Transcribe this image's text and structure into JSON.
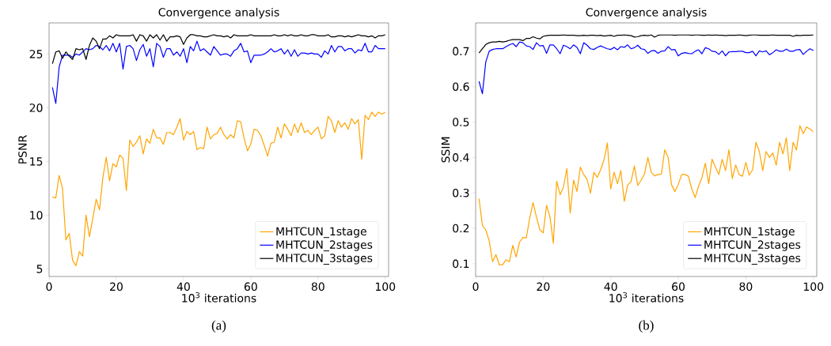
{
  "chart_data": [
    {
      "type": "line",
      "title": "Convergence analysis",
      "xlabel": "10$^{3}$ iterations",
      "ylabel": "PSNR",
      "legend": "bottom right",
      "annotations": [
        "(a)"
      ],
      "x": [
        1,
        2,
        3,
        4,
        5,
        6,
        7,
        8,
        9,
        10,
        11,
        12,
        13,
        14,
        15,
        16,
        17,
        18,
        19,
        20,
        21,
        22,
        23,
        24,
        25,
        26,
        27,
        28,
        29,
        30,
        31,
        32,
        33,
        34,
        35,
        36,
        37,
        38,
        39,
        40,
        41,
        42,
        43,
        44,
        45,
        46,
        47,
        48,
        49,
        50,
        51,
        52,
        53,
        54,
        55,
        56,
        57,
        58,
        59,
        60,
        61,
        62,
        63,
        64,
        65,
        66,
        67,
        68,
        69,
        70,
        71,
        72,
        73,
        74,
        75,
        76,
        77,
        78,
        79,
        80,
        81,
        82,
        83,
        84,
        85,
        86,
        87,
        88,
        89,
        90,
        91,
        92,
        93,
        94,
        95,
        96,
        97,
        98,
        99,
        100
      ],
      "xlim": [
        0,
        101
      ],
      "xticks": [
        0,
        20,
        40,
        60,
        80,
        100
      ],
      "ylim": [
        4.3,
        27.9
      ],
      "yticks": [
        5,
        10,
        15,
        20,
        25
      ],
      "series": [
        {
          "name": "MHTCUN_1stage",
          "color": "#ffa500",
          "values": [
            11.7,
            11.6,
            13.7,
            12.5,
            7.7,
            8.3,
            5.8,
            5.3,
            6.6,
            6.2,
            10.0,
            8.0,
            9.7,
            11.5,
            10.5,
            13.5,
            15.4,
            13.2,
            14.8,
            14.5,
            15.6,
            15.3,
            12.3,
            17.0,
            16.4,
            16.8,
            17.4,
            15.7,
            17.1,
            16.7,
            18.0,
            17.2,
            17.2,
            16.6,
            17.7,
            17.7,
            17.5,
            18.2,
            19.0,
            17.0,
            17.8,
            17.5,
            17.8,
            16.1,
            16.3,
            16.2,
            18.2,
            17.1,
            17.5,
            17.6,
            18.2,
            17.5,
            17.1,
            17.5,
            17.2,
            18.8,
            18.7,
            17.2,
            16.0,
            16.6,
            18.0,
            17.9,
            17.4,
            16.5,
            15.5,
            16.7,
            16.8,
            18.2,
            17.2,
            18.5,
            18.0,
            17.4,
            18.5,
            17.7,
            18.6,
            17.7,
            17.9,
            17.5,
            17.9,
            18.2,
            17.1,
            17.4,
            19.2,
            18.8,
            17.7,
            18.8,
            18.2,
            18.6,
            18.0,
            19.0,
            18.5,
            18.9,
            15.2,
            19.3,
            18.9,
            19.6,
            19.2,
            19.6,
            19.4,
            19.6
          ]
        },
        {
          "name": "MHTCUN_2stages",
          "color": "#0000ff",
          "values": [
            21.9,
            20.4,
            23.8,
            24.9,
            24.9,
            24.9,
            24.7,
            25.0,
            24.9,
            25.2,
            25.5,
            25.4,
            25.5,
            25.8,
            25.7,
            25.4,
            25.8,
            25.3,
            26.0,
            25.2,
            26.0,
            23.6,
            25.7,
            25.8,
            25.5,
            24.4,
            25.4,
            25.9,
            24.8,
            25.5,
            23.8,
            26.0,
            25.7,
            24.7,
            25.5,
            25.5,
            24.9,
            25.2,
            24.8,
            25.5,
            24.2,
            25.7,
            25.3,
            26.2,
            25.3,
            25.5,
            25.2,
            24.9,
            25.7,
            25.3,
            24.9,
            25.0,
            25.0,
            24.8,
            25.3,
            25.5,
            26.0,
            25.2,
            25.3,
            24.2,
            24.9,
            24.9,
            24.9,
            25.0,
            25.2,
            25.5,
            25.2,
            25.3,
            25.5,
            25.0,
            25.4,
            24.8,
            25.4,
            24.8,
            25.1,
            25.1,
            25.0,
            25.1,
            25.0,
            25.0,
            24.7,
            25.3,
            25.0,
            25.8,
            25.2,
            25.7,
            25.7,
            25.3,
            25.5,
            25.5,
            25.1,
            25.4,
            25.3,
            26.0,
            25.2,
            25.2,
            25.8,
            25.5,
            25.5,
            25.5
          ]
        },
        {
          "name": "MHTCUN_3stages",
          "color": "#000000",
          "values": [
            24.1,
            25.2,
            25.3,
            24.6,
            25.2,
            24.8,
            24.5,
            25.5,
            25.4,
            25.5,
            24.5,
            25.8,
            26.5,
            26.2,
            25.5,
            26.4,
            26.4,
            26.7,
            26.5,
            26.8,
            26.7,
            26.7,
            26.7,
            26.7,
            26.8,
            26.2,
            26.8,
            26.7,
            26.2,
            26.8,
            26.5,
            26.8,
            26.3,
            26.8,
            26.2,
            26.6,
            26.6,
            26.7,
            26.6,
            25.9,
            26.5,
            26.8,
            26.8,
            26.7,
            26.7,
            26.6,
            26.6,
            26.7,
            26.8,
            26.7,
            26.7,
            26.6,
            26.7,
            26.5,
            26.8,
            26.7,
            26.7,
            26.7,
            26.7,
            26.8,
            26.7,
            26.7,
            26.7,
            26.7,
            26.7,
            26.7,
            26.8,
            26.7,
            26.7,
            26.8,
            26.7,
            26.8,
            26.7,
            26.7,
            26.8,
            26.7,
            26.7,
            26.8,
            26.8,
            26.7,
            26.7,
            26.7,
            26.8,
            26.6,
            26.6,
            26.7,
            26.7,
            26.6,
            26.7,
            26.6,
            26.7,
            26.8,
            26.7,
            26.7,
            26.6,
            26.7,
            26.5,
            26.7,
            26.7,
            26.8
          ]
        }
      ]
    },
    {
      "type": "line",
      "title": "Convergence analysis",
      "xlabel": "10$^{3}$ iterations",
      "ylabel": "SSIM",
      "legend": "bottom right",
      "annotations": [
        "(b)"
      ],
      "x": [
        1,
        2,
        3,
        4,
        5,
        6,
        7,
        8,
        9,
        10,
        11,
        12,
        13,
        14,
        15,
        16,
        17,
        18,
        19,
        20,
        21,
        22,
        23,
        24,
        25,
        26,
        27,
        28,
        29,
        30,
        31,
        32,
        33,
        34,
        35,
        36,
        37,
        38,
        39,
        40,
        41,
        42,
        43,
        44,
        45,
        46,
        47,
        48,
        49,
        50,
        51,
        52,
        53,
        54,
        55,
        56,
        57,
        58,
        59,
        60,
        61,
        62,
        63,
        64,
        65,
        66,
        67,
        68,
        69,
        70,
        71,
        72,
        73,
        74,
        75,
        76,
        77,
        78,
        79,
        80,
        81,
        82,
        83,
        84,
        85,
        86,
        87,
        88,
        89,
        90,
        91,
        92,
        93,
        94,
        95,
        96,
        97,
        98,
        99,
        100
      ],
      "xlim": [
        0,
        101
      ],
      "xticks": [
        0,
        20,
        40,
        60,
        80,
        100
      ],
      "ylim": [
        0.064,
        0.78
      ],
      "yticks": [
        0.1,
        0.2,
        0.3,
        0.4,
        0.5,
        0.6,
        0.7
      ],
      "series": [
        {
          "name": "MHTCUN_1stage",
          "color": "#ffa500",
          "values": [
            0.284,
            0.208,
            0.195,
            0.165,
            0.106,
            0.126,
            0.097,
            0.097,
            0.111,
            0.106,
            0.152,
            0.119,
            0.161,
            0.174,
            0.173,
            0.228,
            0.273,
            0.232,
            0.196,
            0.187,
            0.265,
            0.232,
            0.158,
            0.333,
            0.295,
            0.316,
            0.369,
            0.243,
            0.336,
            0.304,
            0.373,
            0.352,
            0.338,
            0.299,
            0.358,
            0.344,
            0.365,
            0.393,
            0.441,
            0.311,
            0.358,
            0.326,
            0.363,
            0.276,
            0.322,
            0.332,
            0.376,
            0.321,
            0.336,
            0.354,
            0.4,
            0.358,
            0.348,
            0.352,
            0.353,
            0.422,
            0.4,
            0.323,
            0.304,
            0.324,
            0.352,
            0.352,
            0.347,
            0.311,
            0.287,
            0.319,
            0.343,
            0.384,
            0.326,
            0.395,
            0.373,
            0.352,
            0.395,
            0.363,
            0.422,
            0.341,
            0.379,
            0.352,
            0.347,
            0.386,
            0.35,
            0.365,
            0.443,
            0.417,
            0.363,
            0.417,
            0.4,
            0.413,
            0.378,
            0.443,
            0.41,
            0.456,
            0.363,
            0.443,
            0.421,
            0.49,
            0.467,
            0.486,
            0.48,
            0.473
          ]
        },
        {
          "name": "MHTCUN_2stages",
          "color": "#0000ff",
          "values": [
            0.615,
            0.58,
            0.67,
            0.7,
            0.705,
            0.707,
            0.707,
            0.707,
            0.713,
            0.718,
            0.722,
            0.713,
            0.726,
            0.724,
            0.715,
            0.713,
            0.705,
            0.724,
            0.715,
            0.716,
            0.694,
            0.718,
            0.718,
            0.707,
            0.693,
            0.717,
            0.713,
            0.707,
            0.718,
            0.711,
            0.693,
            0.724,
            0.717,
            0.707,
            0.705,
            0.711,
            0.715,
            0.711,
            0.707,
            0.705,
            0.711,
            0.704,
            0.713,
            0.711,
            0.718,
            0.707,
            0.71,
            0.717,
            0.707,
            0.705,
            0.694,
            0.701,
            0.702,
            0.694,
            0.7,
            0.701,
            0.713,
            0.704,
            0.705,
            0.687,
            0.694,
            0.696,
            0.694,
            0.693,
            0.7,
            0.704,
            0.693,
            0.71,
            0.707,
            0.7,
            0.699,
            0.691,
            0.701,
            0.687,
            0.698,
            0.699,
            0.699,
            0.7,
            0.7,
            0.696,
            0.696,
            0.7,
            0.687,
            0.701,
            0.698,
            0.701,
            0.69,
            0.696,
            0.704,
            0.7,
            0.7,
            0.706,
            0.7,
            0.7,
            0.704,
            0.705,
            0.691,
            0.7,
            0.707,
            0.702
          ]
        },
        {
          "name": "MHTCUN_3stages",
          "color": "#000000",
          "values": [
            0.695,
            0.707,
            0.719,
            0.724,
            0.726,
            0.726,
            0.728,
            0.726,
            0.728,
            0.731,
            0.733,
            0.733,
            0.733,
            0.73,
            0.736,
            0.736,
            0.741,
            0.737,
            0.735,
            0.742,
            0.744,
            0.745,
            0.745,
            0.745,
            0.745,
            0.746,
            0.745,
            0.745,
            0.745,
            0.744,
            0.744,
            0.745,
            0.744,
            0.745,
            0.745,
            0.744,
            0.745,
            0.743,
            0.744,
            0.745,
            0.742,
            0.745,
            0.745,
            0.746,
            0.745,
            0.744,
            0.74,
            0.741,
            0.744,
            0.745,
            0.744,
            0.746,
            0.74,
            0.745,
            0.746,
            0.746,
            0.746,
            0.746,
            0.745,
            0.746,
            0.746,
            0.746,
            0.746,
            0.745,
            0.746,
            0.746,
            0.745,
            0.745,
            0.746,
            0.745,
            0.746,
            0.745,
            0.745,
            0.744,
            0.745,
            0.745,
            0.745,
            0.746,
            0.745,
            0.744,
            0.745,
            0.746,
            0.746,
            0.745,
            0.745,
            0.745,
            0.745,
            0.746,
            0.745,
            0.745,
            0.745,
            0.745,
            0.745,
            0.742,
            0.745,
            0.744,
            0.745,
            0.745,
            0.745,
            0.746
          ]
        }
      ]
    }
  ]
}
